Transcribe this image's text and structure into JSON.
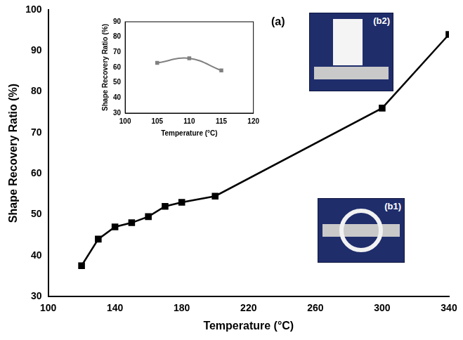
{
  "chart_data": [
    {
      "type": "line",
      "x": [
        120,
        130,
        140,
        150,
        160,
        170,
        180,
        200,
        300,
        340
      ],
      "values": [
        37.5,
        44,
        47,
        48,
        49.5,
        52,
        53,
        54.5,
        76,
        94
      ],
      "xlim": [
        100,
        340
      ],
      "xticks": [
        100,
        140,
        180,
        220,
        260,
        300,
        340
      ],
      "ylim": [
        30,
        100
      ],
      "yticks": [
        30,
        40,
        50,
        60,
        70,
        80,
        90,
        100
      ],
      "x_label": "Temperature (°C)",
      "y_label": "Shape Recovery Ratio (%)",
      "color": "#000000",
      "marker": "square",
      "line_style": "solid",
      "grid": false,
      "annotations": [
        "(a)",
        "(b1)",
        "(b2)"
      ]
    },
    {
      "type": "line",
      "x": [
        105,
        110,
        115
      ],
      "values": [
        63,
        66,
        58
      ],
      "xlim": [
        100,
        120
      ],
      "xticks": [
        100,
        105,
        110,
        115,
        120
      ],
      "ylim": [
        30,
        90
      ],
      "yticks": [
        30,
        40,
        50,
        60,
        70,
        80,
        90
      ],
      "x_label": "Temperature (°C)",
      "y_label": "Shape Recovery Ratio (%)",
      "color": "#808080",
      "marker": "square",
      "line_style": "solid",
      "grid": false
    }
  ]
}
